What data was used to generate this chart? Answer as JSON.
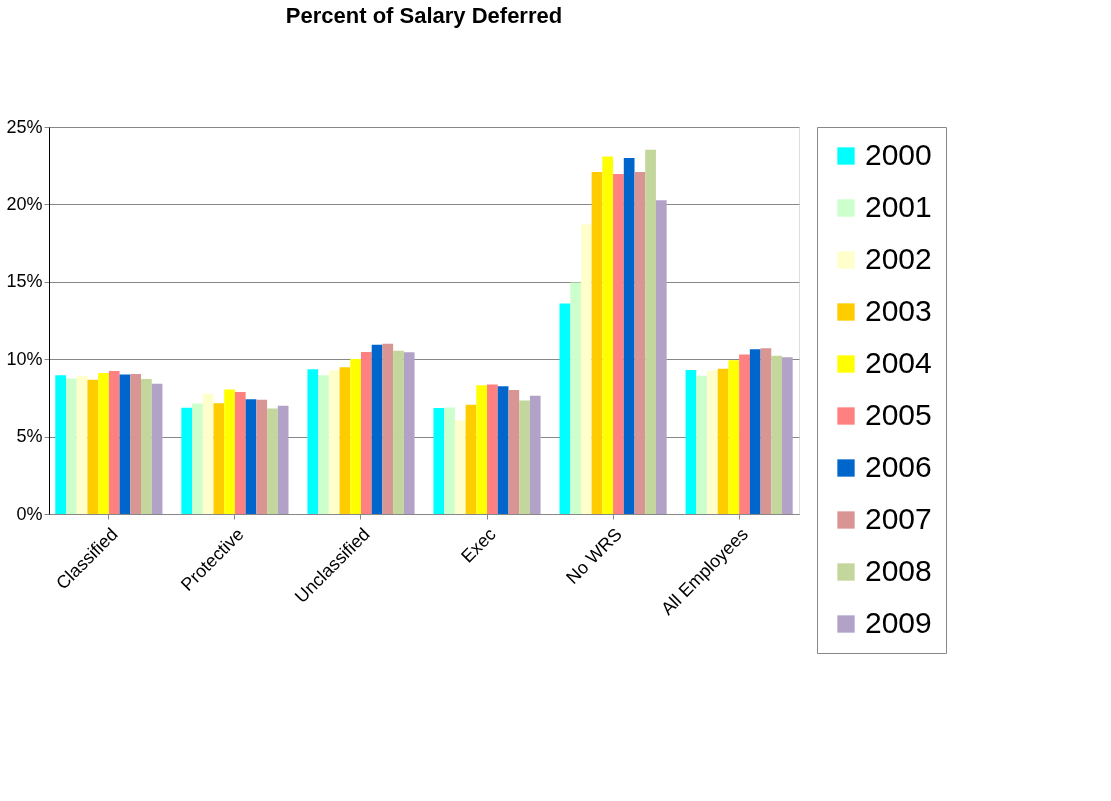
{
  "chart_data": {
    "type": "bar",
    "title": "Percent of Salary Deferred",
    "categories": [
      "Classified",
      "Protective",
      "Unclassified",
      "Exec",
      "No WRS",
      "All Employees"
    ],
    "series": [
      {
        "name": "2000",
        "color": "#00ffff",
        "values": [
          8.96,
          6.86,
          9.35,
          6.84,
          13.6,
          9.3
        ]
      },
      {
        "name": "2001",
        "color": "#ccffcc",
        "values": [
          8.75,
          7.14,
          8.96,
          6.88,
          14.96,
          8.93
        ]
      },
      {
        "name": "2002",
        "color": "#ffffcc",
        "values": [
          8.92,
          7.77,
          9.27,
          6.04,
          18.71,
          9.26
        ]
      },
      {
        "name": "2003",
        "color": "#ffcc00",
        "values": [
          8.68,
          7.16,
          9.48,
          7.06,
          22.1,
          9.39
        ]
      },
      {
        "name": "2004",
        "color": "#ffff00",
        "values": [
          9.11,
          8.05,
          10.02,
          8.31,
          23.1,
          9.93
        ]
      },
      {
        "name": "2005",
        "color": "#ff8080",
        "values": [
          9.24,
          7.88,
          10.47,
          8.36,
          21.97,
          10.3
        ]
      },
      {
        "name": "2006",
        "color": "#0066cc",
        "values": [
          9.01,
          7.42,
          10.93,
          8.25,
          22.99,
          10.64
        ]
      },
      {
        "name": "2007",
        "color": "#d99594",
        "values": [
          9.05,
          7.38,
          10.99,
          8.01,
          22.1,
          10.71
        ]
      },
      {
        "name": "2008",
        "color": "#c3d69b",
        "values": [
          8.72,
          6.82,
          10.54,
          7.34,
          23.53,
          10.23
        ]
      },
      {
        "name": "2009",
        "color": "#b2a2c7",
        "values": [
          8.42,
          6.99,
          10.45,
          7.64,
          20.27,
          10.12
        ]
      }
    ],
    "ylim": [
      0,
      25
    ],
    "yticks": [
      {
        "value": 0,
        "label": "0%"
      },
      {
        "value": 5,
        "label": "5%"
      },
      {
        "value": 10,
        "label": "10%"
      },
      {
        "value": 15,
        "label": "15%"
      },
      {
        "value": 20,
        "label": "20%"
      },
      {
        "value": 25,
        "label": "25%"
      }
    ],
    "grid": "y",
    "legend": "right"
  }
}
